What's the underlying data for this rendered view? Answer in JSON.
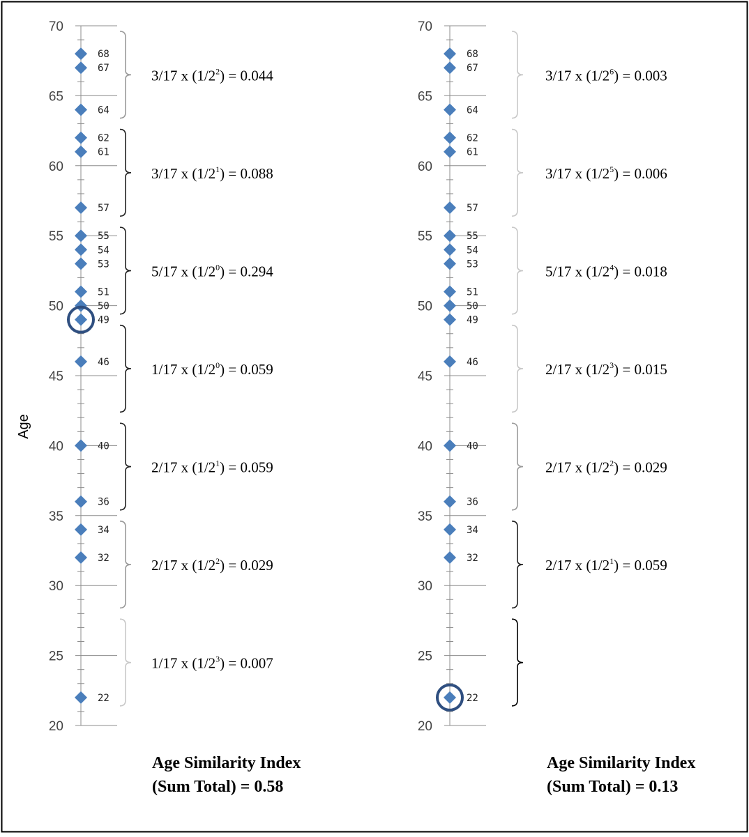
{
  "chart_data": [
    {
      "type": "scatter",
      "ylabel": "Age",
      "ylim": [
        20,
        70
      ],
      "ticks": [
        "20",
        "25",
        "30",
        "35",
        "40",
        "45",
        "50",
        "55",
        "60",
        "65",
        "70"
      ],
      "points": [
        68,
        67,
        64,
        62,
        61,
        57,
        55,
        54,
        53,
        51,
        50,
        49,
        46,
        40,
        36,
        34,
        32,
        22
      ],
      "point_labels": [
        "68",
        "67",
        "64",
        "62",
        "61",
        "57",
        "55",
        "54",
        "53",
        "51",
        "50",
        "49",
        "46",
        "40",
        "36",
        "34",
        "32",
        "22"
      ],
      "highlighted_point": 49,
      "marker_color": "#4a7ebb",
      "highlight_color": "#2f4f80",
      "groups": [
        {
          "range": [
            63,
            70
          ],
          "fraction": "3/17",
          "base": "2",
          "exponent": "2",
          "value": "0.044",
          "emphasis": "light"
        },
        {
          "range": [
            56,
            63
          ],
          "fraction": "3/17",
          "base": "2",
          "exponent": "1",
          "value": "0.088",
          "emphasis": "dark"
        },
        {
          "range": [
            49,
            56
          ],
          "fraction": "5/17",
          "base": "2",
          "exponent": "0",
          "value": "0.294",
          "emphasis": "dark"
        },
        {
          "range": [
            42,
            49
          ],
          "fraction": "1/17",
          "base": "2",
          "exponent": "0",
          "value": "0.059",
          "emphasis": "dark"
        },
        {
          "range": [
            35,
            42
          ],
          "fraction": "2/17",
          "base": "2",
          "exponent": "1",
          "value": "0.059",
          "emphasis": "dark"
        },
        {
          "range": [
            28,
            35
          ],
          "fraction": "2/17",
          "base": "2",
          "exponent": "2",
          "value": "0.029",
          "emphasis": "light"
        },
        {
          "range": [
            21,
            28
          ],
          "fraction": "1/17",
          "base": "2",
          "exponent": "3",
          "value": "0.007",
          "emphasis": "lighter"
        }
      ],
      "summary_line1": "Age Similarity Index",
      "summary_line2": "(Sum Total) = 0.58"
    },
    {
      "type": "scatter",
      "ylim": [
        20,
        70
      ],
      "ticks": [
        "20",
        "25",
        "30",
        "35",
        "40",
        "45",
        "50",
        "55",
        "60",
        "65",
        "70"
      ],
      "points": [
        68,
        67,
        64,
        62,
        61,
        57,
        55,
        54,
        53,
        51,
        50,
        49,
        46,
        40,
        36,
        34,
        32,
        22
      ],
      "point_labels": [
        "68",
        "67",
        "64",
        "62",
        "61",
        "57",
        "55",
        "54",
        "53",
        "51",
        "50",
        "49",
        "46",
        "40",
        "36",
        "34",
        "32",
        "22"
      ],
      "highlighted_point": 22,
      "marker_color": "#4a7ebb",
      "highlight_color": "#2f4f80",
      "groups": [
        {
          "range": [
            63,
            70
          ],
          "fraction": "3/17",
          "base": "2",
          "exponent": "6",
          "value": "0.003",
          "emphasis": "lighter"
        },
        {
          "range": [
            56,
            63
          ],
          "fraction": "3/17",
          "base": "2",
          "exponent": "5",
          "value": "0.006",
          "emphasis": "lighter"
        },
        {
          "range": [
            49,
            56
          ],
          "fraction": "5/17",
          "base": "2",
          "exponent": "4",
          "value": "0.018",
          "emphasis": "lighter"
        },
        {
          "range": [
            42,
            49
          ],
          "fraction": "2/17",
          "base": "2",
          "exponent": "3",
          "value": "0.015",
          "emphasis": "lighter"
        },
        {
          "range": [
            35,
            42
          ],
          "fraction": "2/17",
          "base": "2",
          "exponent": "2",
          "value": "0.029",
          "emphasis": "light"
        },
        {
          "range": [
            28,
            35
          ],
          "fraction": "2/17",
          "base": "2",
          "exponent": "1",
          "value": "0.059",
          "emphasis": "dark"
        },
        {
          "range": [
            21,
            28
          ],
          "fraction": "",
          "base": "",
          "exponent": "",
          "value": "",
          "emphasis": "black"
        }
      ],
      "summary_line1": "Age Similarity Index",
      "summary_line2": "(Sum Total) = 0.13"
    }
  ]
}
